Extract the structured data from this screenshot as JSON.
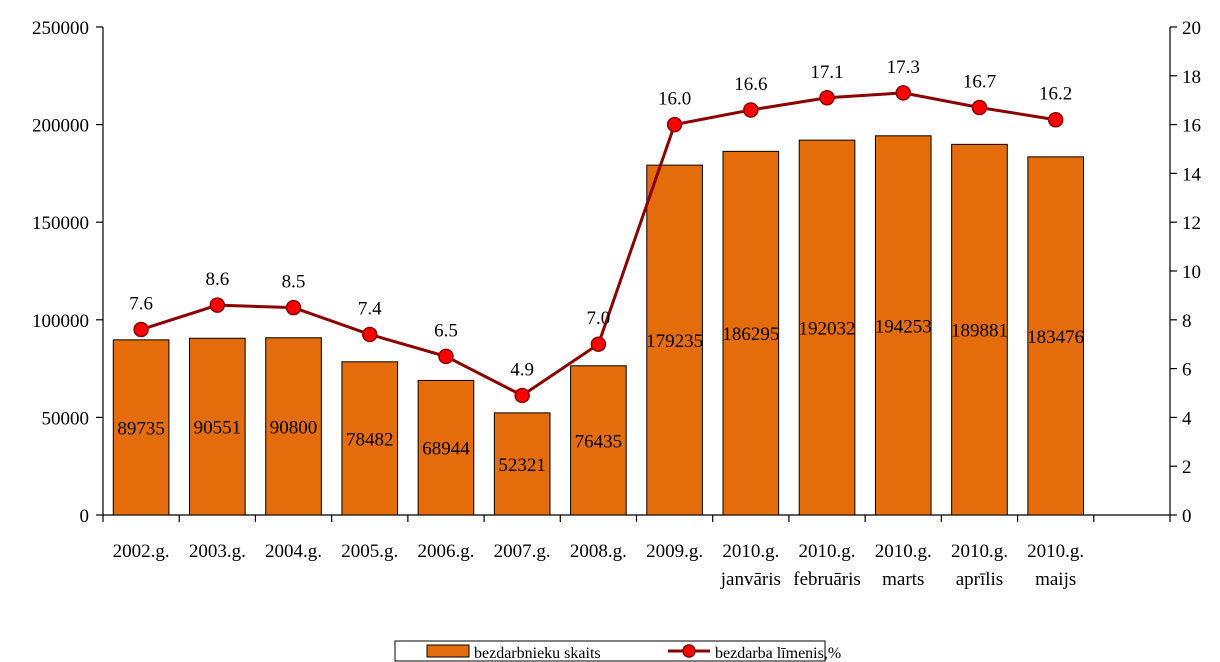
{
  "chart_data": {
    "type": "bar_line",
    "categories": [
      "2002.g.",
      "2003.g.",
      "2004.g.",
      "2005.g.",
      "2006.g.",
      "2007.g.",
      "2008.g.",
      "2009.g.",
      "2010.g.\njanvāris",
      "2010.g.\nfebruāris",
      "2010.g.\nmarts",
      "2010.g.\naprīlis",
      "2010.g.\nmaijs",
      null
    ],
    "series": [
      {
        "name": "bezdarbnieku skaits",
        "type": "bar",
        "color": "#e46c0a",
        "values": [
          89735,
          90551,
          90800,
          78482,
          68944,
          52321,
          76435,
          179235,
          186295,
          192032,
          194253,
          189881,
          183476,
          null
        ]
      },
      {
        "name": "bezdarba līmenis,%",
        "type": "line",
        "axis": "y2",
        "color": "#8b0000",
        "marker_color": "#ff0000",
        "values": [
          7.6,
          8.6,
          8.5,
          7.4,
          6.5,
          4.9,
          7.0,
          16.0,
          16.6,
          17.1,
          17.3,
          16.7,
          16.2,
          null
        ],
        "value_labels": [
          "7.6",
          "8.6",
          "8.5",
          "7.4",
          "6.5",
          "4.9",
          "7.0",
          "16.0",
          "16.6",
          "17.1",
          "17.3",
          "16.7",
          "16.2",
          null
        ]
      }
    ],
    "ylim": [
      0,
      250000
    ],
    "yticks": [
      0,
      50000,
      100000,
      150000,
      200000,
      250000
    ],
    "y2lim": [
      0,
      20
    ],
    "y2ticks": [
      0,
      2,
      4,
      6,
      8,
      10,
      12,
      14,
      16,
      18,
      20
    ],
    "legend": "bottom"
  }
}
